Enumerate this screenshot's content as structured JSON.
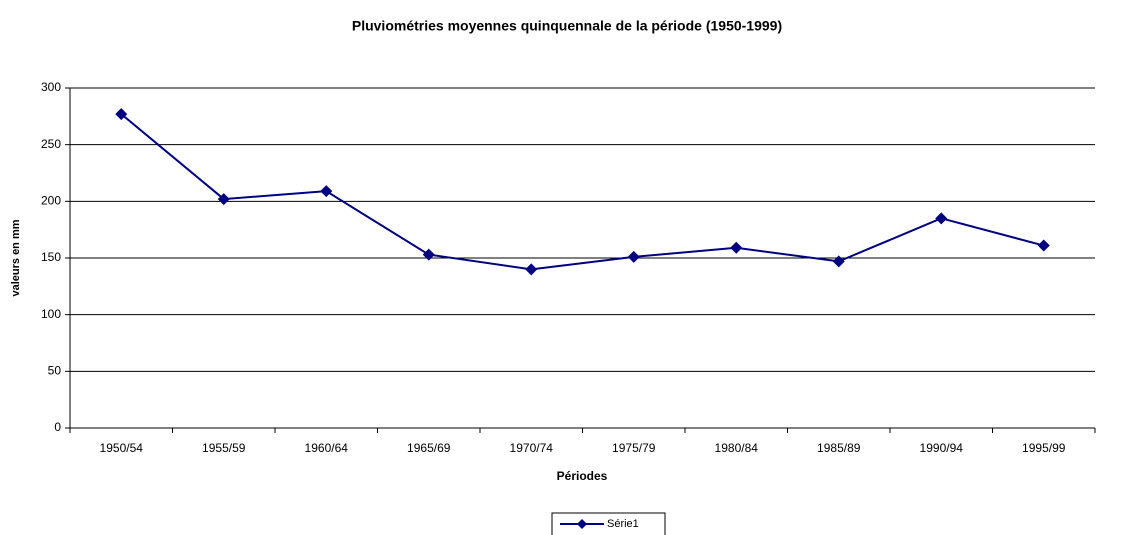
{
  "chart_data": {
    "type": "line",
    "title": "Pluviométries moyennes quinquennale de la période (1950-1999)",
    "x_label": "Périodes",
    "y_label": "valeurs en mm",
    "categories": [
      "1950/54",
      "1955/59",
      "1960/64",
      "1965/69",
      "1970/74",
      "1975/79",
      "1980/84",
      "1985/89",
      "1990/94",
      "1995/99"
    ],
    "series": [
      {
        "name": "Série1",
        "color": "#000080",
        "values": [
          277,
          202,
          209,
          153,
          140,
          151,
          159,
          147,
          185,
          161
        ]
      }
    ],
    "ylim": [
      0,
      300
    ],
    "yticks": [
      0,
      50,
      100,
      150,
      200,
      250,
      300
    ],
    "grid": true,
    "legend": "bottom"
  }
}
